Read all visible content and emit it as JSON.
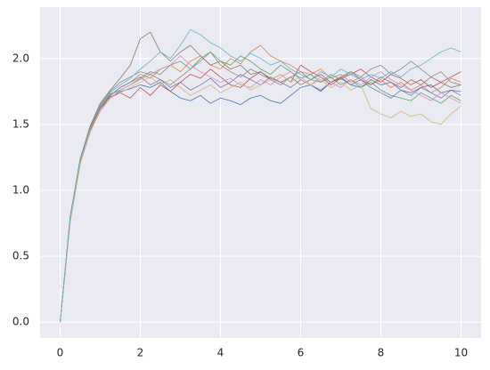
{
  "chart_data": {
    "type": "line",
    "x": [
      0,
      0.25,
      0.5,
      0.75,
      1,
      1.25,
      1.5,
      1.75,
      2,
      2.25,
      2.5,
      2.75,
      3,
      3.25,
      3.5,
      3.75,
      4,
      4.25,
      4.5,
      4.75,
      5,
      5.25,
      5.5,
      5.75,
      6,
      6.25,
      6.5,
      6.75,
      7,
      7.25,
      7.5,
      7.75,
      8,
      8.25,
      8.5,
      8.75,
      9,
      9.25,
      9.5,
      9.75,
      10
    ],
    "series": [
      {
        "color": "#4c72b0",
        "values": [
          0,
          0.8,
          1.22,
          1.46,
          1.62,
          1.7,
          1.75,
          1.77,
          1.8,
          1.78,
          1.82,
          1.75,
          1.7,
          1.68,
          1.72,
          1.66,
          1.7,
          1.68,
          1.65,
          1.7,
          1.72,
          1.68,
          1.66,
          1.72,
          1.78,
          1.8,
          1.75,
          1.82,
          1.85,
          1.8,
          1.78,
          1.84,
          1.8,
          1.82,
          1.76,
          1.74,
          1.78,
          1.8,
          1.74,
          1.76,
          1.75
        ]
      },
      {
        "color": "#dd8452",
        "values": [
          0,
          0.76,
          1.2,
          1.45,
          1.62,
          1.72,
          1.78,
          1.82,
          1.88,
          1.85,
          1.92,
          1.95,
          1.9,
          1.98,
          2.02,
          1.95,
          1.92,
          2.0,
          1.96,
          2.05,
          2.1,
          2.02,
          1.98,
          1.95,
          1.9,
          1.88,
          1.92,
          1.85,
          1.88,
          1.82,
          1.86,
          1.8,
          1.84,
          1.78,
          1.82,
          1.76,
          1.8,
          1.74,
          1.78,
          1.85,
          1.82
        ]
      },
      {
        "color": "#55a868",
        "values": [
          0,
          0.79,
          1.23,
          1.48,
          1.64,
          1.73,
          1.76,
          1.8,
          1.85,
          1.9,
          1.88,
          1.95,
          1.98,
          1.92,
          2.0,
          2.05,
          1.98,
          1.95,
          2.02,
          1.98,
          1.92,
          1.88,
          1.95,
          1.9,
          1.85,
          1.88,
          1.82,
          1.86,
          1.8,
          1.84,
          1.78,
          1.82,
          1.76,
          1.72,
          1.7,
          1.68,
          1.74,
          1.7,
          1.66,
          1.72,
          1.68
        ]
      },
      {
        "color": "#c44e52",
        "values": [
          0,
          0.77,
          1.21,
          1.46,
          1.63,
          1.71,
          1.74,
          1.7,
          1.78,
          1.72,
          1.8,
          1.75,
          1.82,
          1.88,
          1.85,
          1.92,
          1.86,
          1.8,
          1.78,
          1.85,
          1.9,
          1.84,
          1.88,
          1.82,
          1.95,
          1.9,
          1.86,
          1.8,
          1.85,
          1.88,
          1.92,
          1.86,
          1.82,
          1.88,
          1.85,
          1.8,
          1.84,
          1.78,
          1.82,
          1.86,
          1.9
        ]
      },
      {
        "color": "#8172b3",
        "values": [
          0,
          0.78,
          1.22,
          1.47,
          1.63,
          1.72,
          1.78,
          1.82,
          1.86,
          1.8,
          1.84,
          1.78,
          1.82,
          1.76,
          1.8,
          1.85,
          1.78,
          1.82,
          1.88,
          1.84,
          1.8,
          1.86,
          1.82,
          1.78,
          1.84,
          1.8,
          1.76,
          1.82,
          1.86,
          1.8,
          1.84,
          1.78,
          1.74,
          1.7,
          1.76,
          1.72,
          1.78,
          1.74,
          1.7,
          1.76,
          1.72
        ]
      },
      {
        "color": "#937860",
        "values": [
          0,
          0.8,
          1.24,
          1.49,
          1.66,
          1.76,
          1.85,
          1.95,
          2.15,
          2.2,
          2.05,
          1.98,
          2.05,
          2.1,
          2.02,
          1.95,
          1.98,
          1.92,
          1.95,
          1.88,
          1.9,
          1.85,
          1.82,
          1.86,
          1.8,
          1.84,
          1.88,
          1.82,
          1.86,
          1.9,
          1.84,
          1.8,
          1.86,
          1.82,
          1.78,
          1.84,
          1.8,
          1.86,
          1.82,
          1.78,
          1.8
        ]
      },
      {
        "color": "#da8bc3",
        "values": [
          0,
          0.78,
          1.21,
          1.45,
          1.6,
          1.7,
          1.76,
          1.8,
          1.84,
          1.88,
          1.92,
          1.95,
          2.02,
          1.95,
          1.9,
          1.86,
          1.82,
          1.85,
          1.8,
          1.78,
          1.84,
          1.8,
          1.86,
          1.9,
          1.84,
          1.8,
          1.86,
          1.82,
          1.78,
          1.84,
          1.8,
          1.86,
          1.9,
          1.84,
          1.8,
          1.76,
          1.72,
          1.68,
          1.74,
          1.7,
          1.66
        ]
      },
      {
        "color": "#8c8c8c",
        "values": [
          0,
          0.79,
          1.23,
          1.48,
          1.65,
          1.75,
          1.82,
          1.86,
          1.9,
          1.88,
          1.84,
          1.8,
          1.86,
          1.92,
          1.98,
          2.05,
          1.95,
          1.9,
          1.86,
          1.92,
          1.88,
          1.84,
          1.8,
          1.86,
          1.9,
          1.84,
          1.82,
          1.88,
          1.84,
          1.9,
          1.86,
          1.92,
          1.95,
          1.88,
          1.92,
          1.98,
          1.92,
          1.86,
          1.9,
          1.82,
          1.8
        ]
      },
      {
        "color": "#ccb974",
        "values": [
          0,
          0.77,
          1.2,
          1.44,
          1.61,
          1.7,
          1.74,
          1.78,
          1.82,
          1.86,
          1.8,
          1.84,
          1.78,
          1.72,
          1.76,
          1.8,
          1.74,
          1.78,
          1.82,
          1.76,
          1.8,
          1.84,
          1.88,
          1.82,
          1.86,
          1.8,
          1.84,
          1.78,
          1.82,
          1.76,
          1.8,
          1.62,
          1.58,
          1.55,
          1.6,
          1.56,
          1.58,
          1.52,
          1.5,
          1.58,
          1.64
        ]
      },
      {
        "color": "#64b5cd",
        "values": [
          0,
          0.79,
          1.22,
          1.47,
          1.64,
          1.74,
          1.8,
          1.85,
          1.92,
          1.98,
          2.05,
          2.0,
          2.1,
          2.22,
          2.18,
          2.12,
          2.08,
          2.02,
          1.98,
          2.04,
          2.0,
          1.95,
          1.98,
          1.92,
          1.88,
          1.84,
          1.9,
          1.86,
          1.92,
          1.88,
          1.84,
          1.88,
          1.85,
          1.9,
          1.86,
          1.92,
          1.95,
          2.0,
          2.05,
          2.08,
          2.05
        ]
      }
    ],
    "xlim": [
      -0.5,
      10.5
    ],
    "xticks": [
      0,
      2,
      4,
      6,
      8,
      10
    ],
    "ylim": [
      -0.12,
      2.39
    ],
    "yticks": [
      {
        "value": 0,
        "label": "0.0"
      },
      0.5,
      {
        "value": 1,
        "label": "1.0"
      },
      1.5,
      {
        "value": 2,
        "label": "2.0"
      }
    ],
    "grid": true
  }
}
